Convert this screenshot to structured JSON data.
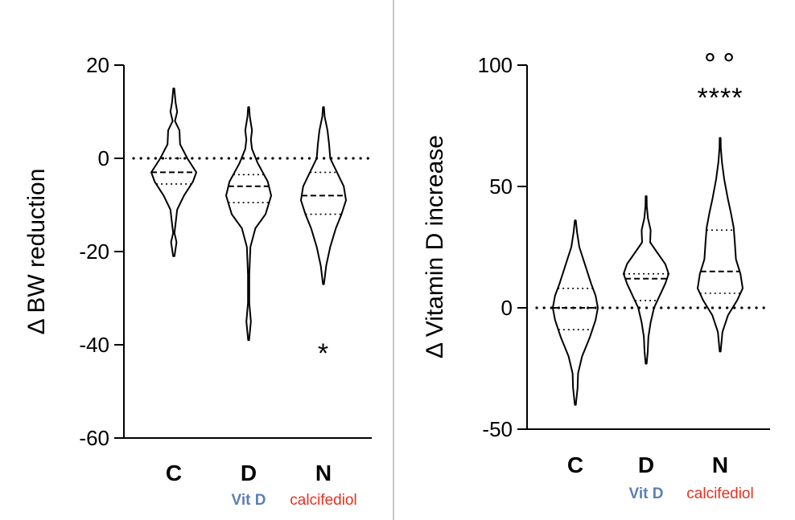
{
  "figure": {
    "divider_color": "#c8c8c8",
    "categories": [
      "C",
      "D",
      "N"
    ],
    "sublabels": [
      {
        "category": "D",
        "text": "Vit D",
        "color": "#5b7fb4"
      },
      {
        "category": "N",
        "text": "calcifediol",
        "color": "#e53222"
      }
    ]
  },
  "chart_data": [
    {
      "type": "violin",
      "ylabel": "Δ BW reduction",
      "ylim": [
        -60,
        20
      ],
      "yticks": [
        20,
        0,
        -20,
        -40,
        -60
      ],
      "reference_line": 0,
      "categories": [
        "C",
        "D",
        "N"
      ],
      "series": [
        {
          "name": "C",
          "quartiles": [
            -5.5,
            -3,
            0
          ],
          "shape": [
            [
              -21,
              0.03
            ],
            [
              -18,
              0.12
            ],
            [
              -16,
              0.03
            ],
            [
              -14,
              0.08
            ],
            [
              -11,
              0.15
            ],
            [
              -8,
              0.45
            ],
            [
              -5,
              0.85
            ],
            [
              -3,
              1.0
            ],
            [
              0,
              0.6
            ],
            [
              3,
              0.28
            ],
            [
              6,
              0.25
            ],
            [
              8,
              0.05
            ],
            [
              10,
              0.15
            ],
            [
              12,
              0.08
            ],
            [
              15,
              0.02
            ]
          ]
        },
        {
          "name": "D",
          "quartiles": [
            -9.5,
            -6,
            -3.5
          ],
          "shape": [
            [
              -39,
              0.02
            ],
            [
              -35,
              0.1
            ],
            [
              -31,
              0.03
            ],
            [
              -25,
              0.03
            ],
            [
              -19,
              0.08
            ],
            [
              -15,
              0.3
            ],
            [
              -12,
              0.75
            ],
            [
              -8,
              1.0
            ],
            [
              -5,
              0.85
            ],
            [
              -1,
              0.4
            ],
            [
              2,
              0.15
            ],
            [
              4,
              0.1
            ],
            [
              6,
              0.15
            ],
            [
              9,
              0.05
            ],
            [
              11,
              0.02
            ]
          ]
        },
        {
          "name": "N",
          "quartiles": [
            -12,
            -8,
            -3
          ],
          "shape": [
            [
              -27,
              0.02
            ],
            [
              -23,
              0.12
            ],
            [
              -19,
              0.3
            ],
            [
              -15,
              0.55
            ],
            [
              -12,
              0.8
            ],
            [
              -9,
              1.0
            ],
            [
              -6,
              0.9
            ],
            [
              -3,
              0.6
            ],
            [
              0,
              0.3
            ],
            [
              3,
              0.25
            ],
            [
              6,
              0.18
            ],
            [
              9,
              0.05
            ],
            [
              11,
              0.02
            ]
          ]
        }
      ],
      "annotations": [
        {
          "category": "N",
          "y": -40,
          "text": "*"
        }
      ]
    },
    {
      "type": "violin",
      "ylabel": "Δ Vitamin D increase",
      "ylim": [
        -50,
        100
      ],
      "yticks": [
        100,
        50,
        0,
        -50
      ],
      "reference_line": 0,
      "categories": [
        "C",
        "D",
        "N"
      ],
      "series": [
        {
          "name": "C",
          "quartiles": [
            -9,
            0,
            8
          ],
          "shape": [
            [
              -40,
              0.02
            ],
            [
              -33,
              0.1
            ],
            [
              -27,
              0.12
            ],
            [
              -20,
              0.3
            ],
            [
              -12,
              0.65
            ],
            [
              -5,
              0.9
            ],
            [
              0,
              1.0
            ],
            [
              5,
              0.9
            ],
            [
              10,
              0.7
            ],
            [
              18,
              0.42
            ],
            [
              25,
              0.18
            ],
            [
              31,
              0.08
            ],
            [
              36,
              0.02
            ]
          ]
        },
        {
          "name": "D",
          "quartiles": [
            3,
            12,
            14
          ],
          "shape": [
            [
              -23,
              0.02
            ],
            [
              -18,
              0.07
            ],
            [
              -12,
              0.1
            ],
            [
              -6,
              0.2
            ],
            [
              0,
              0.35
            ],
            [
              6,
              0.65
            ],
            [
              10,
              0.85
            ],
            [
              14,
              1.0
            ],
            [
              18,
              0.85
            ],
            [
              24,
              0.4
            ],
            [
              27,
              0.18
            ],
            [
              32,
              0.2
            ],
            [
              37,
              0.08
            ],
            [
              42,
              0.03
            ],
            [
              46,
              0.02
            ]
          ]
        },
        {
          "name": "N",
          "quartiles": [
            6,
            15,
            32
          ],
          "shape": [
            [
              -18,
              0.02
            ],
            [
              -10,
              0.1
            ],
            [
              -3,
              0.35
            ],
            [
              3,
              0.75
            ],
            [
              8,
              1.0
            ],
            [
              14,
              0.9
            ],
            [
              20,
              0.7
            ],
            [
              27,
              0.65
            ],
            [
              33,
              0.6
            ],
            [
              39,
              0.48
            ],
            [
              45,
              0.34
            ],
            [
              53,
              0.18
            ],
            [
              60,
              0.08
            ],
            [
              66,
              0.03
            ],
            [
              70,
              0.02
            ]
          ]
        }
      ],
      "annotations": [
        {
          "category": "N",
          "y": 90,
          "text": "****"
        },
        {
          "category": "N",
          "y": 101,
          "text": "∘∘"
        }
      ]
    }
  ]
}
